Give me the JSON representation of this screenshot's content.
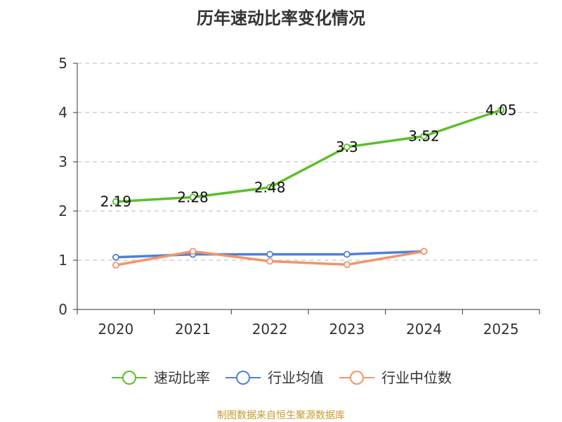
{
  "chart_data": {
    "type": "line",
    "title": "历年速动比率变化情况",
    "categories": [
      "2020",
      "2021",
      "2022",
      "2023",
      "2024",
      "2025"
    ],
    "ylim": [
      0,
      5
    ],
    "yticks": [
      "0",
      "1",
      "2",
      "3",
      "4",
      "5"
    ],
    "grid": true,
    "legend_position": "bottom",
    "series": [
      {
        "name": "速动比率",
        "color": "#5cbf29",
        "show_labels": true,
        "values": [
          2.19,
          2.28,
          2.48,
          3.3,
          3.52,
          4.05
        ],
        "labels": [
          "2.19",
          "2.28",
          "2.48",
          "3.3",
          "3.52",
          "4.05"
        ]
      },
      {
        "name": "行业均值",
        "color": "#4f7fdc",
        "show_labels": false,
        "values": [
          1.06,
          1.12,
          1.12,
          1.12,
          1.18,
          null
        ]
      },
      {
        "name": "行业中位数",
        "color": "#f2946a",
        "show_labels": false,
        "values": [
          0.9,
          1.18,
          0.98,
          0.91,
          1.18,
          null
        ]
      }
    ]
  },
  "source_note": "制图数据来自恒生聚源数据库"
}
